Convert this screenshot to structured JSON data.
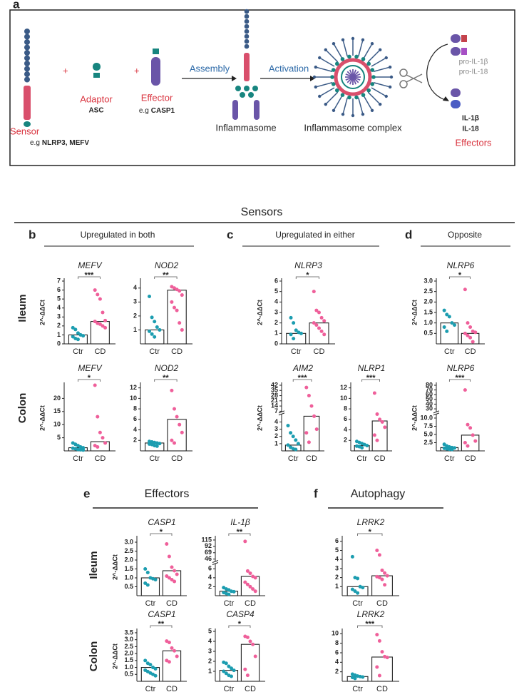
{
  "diagram": {
    "label": "a",
    "sensor": {
      "name": "Sensor",
      "example_prefix": "e.g",
      "example": "NLRP3, MEFV"
    },
    "plus": [
      "+",
      "+"
    ],
    "adaptor": {
      "name": "Adaptor",
      "example": "ASC"
    },
    "effector": {
      "name": "Effector",
      "example_prefix": "e.g",
      "example": "CASP1"
    },
    "steps": [
      "Assembly",
      "Activation"
    ],
    "inflammasome": "Inflammasome",
    "complex": "Inflammasome complex",
    "precursors": [
      "pro-IL-1β",
      "pro-IL-18"
    ],
    "products": [
      "IL-1β",
      "IL-18"
    ],
    "products_label": "Effectors"
  },
  "sections": [
    {
      "title": "Sensors"
    },
    {
      "label": "e",
      "title": "Effectors"
    },
    {
      "label": "f",
      "title": "Autophagy"
    }
  ],
  "panels": [
    {
      "label": "b",
      "title": "Upregulated in both"
    },
    {
      "label": "c",
      "title": "Upregulated in either"
    },
    {
      "label": "d",
      "title": "Opposite"
    }
  ],
  "row_labels": [
    "Ileum",
    "Colon",
    "Ileum",
    "Colon"
  ],
  "chart_data": [
    {
      "type": "dot_bar",
      "title": "MEFV",
      "ylabel": "2^-ΔΔCt",
      "categories": [
        "Ctr",
        "CD"
      ],
      "values": [
        1.0,
        2.5
      ],
      "points": [
        [
          1.8,
          1.6,
          1.2,
          1.0,
          0.9,
          0.8,
          0.6,
          0.5
        ],
        [
          6.0,
          5.5,
          5.0,
          3.5,
          2.6,
          2.5,
          2.3,
          2.2,
          2.0,
          1.8
        ]
      ],
      "colors": [
        "#1c9db0",
        "#ef5f9a"
      ],
      "ylim": [
        0,
        7
      ],
      "yticks": [
        0,
        1,
        2,
        3,
        4,
        5,
        6,
        7
      ],
      "significance": "***"
    },
    {
      "type": "dot_bar",
      "title": "NOD2",
      "categories": [
        "Ctr",
        "CD"
      ],
      "values": [
        1.0,
        3.85
      ],
      "points": [
        [
          3.4,
          1.9,
          1.6,
          1.2,
          1.0,
          0.9,
          0.7,
          0.5
        ],
        [
          4.1,
          4.0,
          3.9,
          3.8,
          3.5,
          3.0,
          2.6,
          2.4,
          1.5,
          1.0
        ]
      ],
      "colors": [
        "#1c9db0",
        "#ef5f9a"
      ],
      "ylim": [
        0,
        4.5
      ],
      "yticks": [
        1,
        2,
        3,
        4
      ],
      "significance": "**"
    },
    {
      "type": "dot_bar",
      "title": "MEFV",
      "ylabel": "2^-ΔΔCt",
      "categories": [
        "Ctr",
        "CD"
      ],
      "values": [
        1.2,
        3.5
      ],
      "points": [
        [
          3,
          2.5,
          2,
          1.5,
          1.2,
          1,
          0.8,
          0.5,
          0.4,
          0.3
        ],
        [
          25,
          13,
          7,
          5,
          3,
          2,
          1.5
        ]
      ],
      "colors": [
        "#1c9db0",
        "#ef5f9a"
      ],
      "ylim": [
        0,
        25
      ],
      "yticks": [
        5,
        10,
        15,
        20
      ],
      "significance": "*"
    },
    {
      "type": "dot_bar",
      "title": "NOD2",
      "categories": [
        "Ctr",
        "CD"
      ],
      "values": [
        1.5,
        6.0
      ],
      "points": [
        [
          1.8,
          1.7,
          1.6,
          1.5,
          1.4,
          1.3,
          1.2,
          1.0,
          0.9
        ],
        [
          11.5,
          8,
          6.5,
          5,
          3.5,
          2,
          1.5
        ]
      ],
      "colors": [
        "#1c9db0",
        "#ef5f9a"
      ],
      "ylim": [
        0,
        12.5
      ],
      "yticks": [
        2,
        4,
        6,
        8,
        10,
        12
      ],
      "significance": "**"
    },
    {
      "type": "dot_bar",
      "title": "NLRP3",
      "ylabel": "2^-ΔΔCt",
      "categories": [
        "Ctr",
        "CD"
      ],
      "values": [
        1.0,
        2.0
      ],
      "points": [
        [
          2.5,
          2.0,
          1.3,
          1.1,
          1.0,
          0.9,
          0.5
        ],
        [
          5.0,
          3.2,
          3.0,
          2.5,
          2.2,
          2.0,
          1.8,
          1.5,
          1.2,
          0.9
        ]
      ],
      "colors": [
        "#1c9db0",
        "#ef5f9a"
      ],
      "ylim": [
        0,
        6
      ],
      "yticks": [
        0,
        1,
        2,
        3,
        4,
        5,
        6
      ],
      "significance": "*"
    },
    {
      "type": "dot_bar",
      "title": "AIM2",
      "ylabel": "2^-ΔΔCt",
      "categories": [
        "Ctr",
        "CD"
      ],
      "values": [
        0.8,
        4.8
      ],
      "points": [
        [
          3.5,
          2.5,
          2,
          1.5,
          1,
          0.8,
          0.5,
          0.3,
          0.2
        ],
        [
          39,
          28,
          14,
          4.8,
          3,
          2.5,
          1.2
        ]
      ],
      "colors": [
        "#1c9db0",
        "#ef5f9a"
      ],
      "ylim": [
        0,
        42
      ],
      "ybreak": [
        5,
        7
      ],
      "yticks": [
        1,
        2,
        3,
        4,
        7,
        14,
        21,
        28,
        35,
        42
      ],
      "significance": "***"
    },
    {
      "type": "dot_bar",
      "title": "NLRP1",
      "categories": [
        "Ctr",
        "CD"
      ],
      "values": [
        1.0,
        5.7
      ],
      "points": [
        [
          1.8,
          1.6,
          1.4,
          1.2,
          1.0,
          0.9,
          0.8,
          0.6
        ],
        [
          11,
          7,
          6,
          5.5,
          4.5,
          3,
          2
        ]
      ],
      "colors": [
        "#1c9db0",
        "#ef5f9a"
      ],
      "ylim": [
        0,
        12.5
      ],
      "yticks": [
        2,
        4,
        6,
        8,
        10,
        12
      ],
      "significance": "***"
    },
    {
      "type": "dot_bar",
      "title": "NLRP6",
      "ylabel": "2^-ΔΔCt",
      "categories": [
        "Ctr",
        "CD"
      ],
      "values": [
        1.0,
        0.5
      ],
      "points": [
        [
          1.6,
          1.4,
          1.3,
          1.0,
          0.9,
          0.8,
          0.6
        ],
        [
          2.6,
          1.0,
          0.8,
          0.6,
          0.55,
          0.5,
          0.4,
          0.3,
          0.1
        ]
      ],
      "colors": [
        "#1c9db0",
        "#ef5f9a"
      ],
      "ylim": [
        0,
        3
      ],
      "yticks": [
        0.5,
        {
          "value": 1,
          "label": "1.0"
        },
        1.5,
        {
          "value": 2,
          "label": "2.0"
        },
        2.5,
        {
          "value": 3,
          "label": "3.0"
        }
      ],
      "significance": "*"
    },
    {
      "type": "dot_bar",
      "title": "NLRP6",
      "ylabel": "2^-ΔΔCt",
      "categories": [
        "Ctr",
        "CD"
      ],
      "values": [
        1.0,
        4.8
      ],
      "points": [
        [
          2,
          1.5,
          1.2,
          1,
          0.9,
          0.8,
          0.6,
          0.5,
          0.4
        ],
        [
          70,
          8,
          7,
          4.8,
          3,
          2.5,
          1.5
        ]
      ],
      "colors": [
        "#1c9db0",
        "#ef5f9a"
      ],
      "ylim": [
        0,
        80
      ],
      "ybreak": [
        11,
        25
      ],
      "yticks": [
        2.5,
        {
          "value": 5,
          "label": "5.0"
        },
        7.5,
        {
          "value": 10,
          "label": "10.0"
        },
        30,
        40,
        50,
        60,
        70,
        80
      ],
      "significance": "***"
    },
    {
      "type": "dot_bar",
      "title": "CASP1",
      "ylabel": "2^-ΔΔCt",
      "categories": [
        "Ctr",
        "CD"
      ],
      "values": [
        1.0,
        1.4
      ],
      "points": [
        [
          1.5,
          1.3,
          1.0,
          0.95,
          0.9,
          0.7,
          0.6
        ],
        [
          2.9,
          2.2,
          1.6,
          1.4,
          1.2,
          1.1,
          1.0,
          0.9,
          0.8
        ]
      ],
      "colors": [
        "#1c9db0",
        "#ef5f9a"
      ],
      "ylim": [
        0,
        3.2
      ],
      "yticks": [
        0.5,
        {
          "value": 1,
          "label": "1.0"
        },
        1.5,
        {
          "value": 2,
          "label": "2.0"
        },
        2.5,
        {
          "value": 3,
          "label": "3.0"
        }
      ],
      "significance": "*"
    },
    {
      "type": "dot_bar",
      "title": "IL-1β",
      "categories": [
        "Ctr",
        "CD"
      ],
      "values": [
        1.0,
        4.3
      ],
      "points": [
        [
          1.8,
          1.5,
          1.3,
          1.0,
          0.9,
          0.7,
          0.5,
          0.3
        ],
        [
          110,
          5.5,
          5,
          4.3,
          4,
          3,
          2.5,
          2,
          1.5,
          1
        ]
      ],
      "colors": [
        "#1c9db0",
        "#ef5f9a"
      ],
      "ylim": [
        0,
        120
      ],
      "ybreak": [
        7,
        40
      ],
      "yticks": [
        2,
        4,
        6,
        46,
        69,
        92,
        115
      ],
      "significance": "**"
    },
    {
      "type": "dot_bar",
      "title": "CASP1",
      "ylabel": "2^-ΔΔCt",
      "categories": [
        "Ctr",
        "CD"
      ],
      "values": [
        1.0,
        2.2
      ],
      "points": [
        [
          1.5,
          1.3,
          1.2,
          1.0,
          0.9,
          0.8,
          0.7,
          0.6,
          0.5,
          0.4
        ],
        [
          2.9,
          2.8,
          2.4,
          2.2,
          1.8,
          1.5,
          1.4
        ]
      ],
      "colors": [
        "#1c9db0",
        "#ef5f9a"
      ],
      "ylim": [
        0,
        3.6
      ],
      "yticks": [
        0.5,
        {
          "value": 1,
          "label": "1.0"
        },
        1.5,
        {
          "value": 2,
          "label": "2.0"
        },
        2.5,
        {
          "value": 3,
          "label": "3.0"
        },
        3.5
      ],
      "significance": "**"
    },
    {
      "type": "dot_bar",
      "title": "CASP4",
      "categories": [
        "Ctr",
        "CD"
      ],
      "values": [
        1.1,
        3.7
      ],
      "points": [
        [
          1.9,
          1.8,
          1.5,
          1.3,
          1.1,
          1.0,
          0.8,
          0.6,
          0.5
        ],
        [
          4.5,
          4.4,
          4.0,
          3.7,
          2.5,
          1.2,
          0.6
        ]
      ],
      "colors": [
        "#1c9db0",
        "#ef5f9a"
      ],
      "ylim": [
        0,
        5
      ],
      "yticks": [
        1,
        2,
        3,
        4,
        5
      ],
      "significance": "*"
    },
    {
      "type": "dot_bar",
      "title": "LRRK2",
      "categories": [
        "Ctr",
        "CD"
      ],
      "values": [
        1.0,
        2.2
      ],
      "points": [
        [
          4.3,
          2.0,
          1.9,
          1.0,
          0.9,
          0.7,
          0.5,
          0.3
        ],
        [
          5.0,
          4.5,
          2.8,
          2.5,
          2.2,
          2.1,
          2.0,
          1.8,
          1.2
        ]
      ],
      "colors": [
        "#1c9db0",
        "#ef5f9a"
      ],
      "ylim": [
        0,
        6.3
      ],
      "yticks": [
        1,
        2,
        3,
        4,
        5,
        6
      ],
      "significance": "*"
    },
    {
      "type": "dot_bar",
      "title": "LRRK2",
      "categories": [
        "Ctr",
        "CD"
      ],
      "values": [
        1.0,
        5.1
      ],
      "points": [
        [
          1.5,
          1.3,
          1.1,
          1.0,
          0.9,
          0.8,
          0.6
        ],
        [
          9.8,
          8.5,
          6.2,
          5.2,
          5,
          3,
          1.2
        ]
      ],
      "colors": [
        "#1c9db0",
        "#ef5f9a"
      ],
      "ylim": [
        0,
        10.5
      ],
      "yticks": [
        2,
        4,
        6,
        8,
        10
      ],
      "significance": "***"
    }
  ]
}
